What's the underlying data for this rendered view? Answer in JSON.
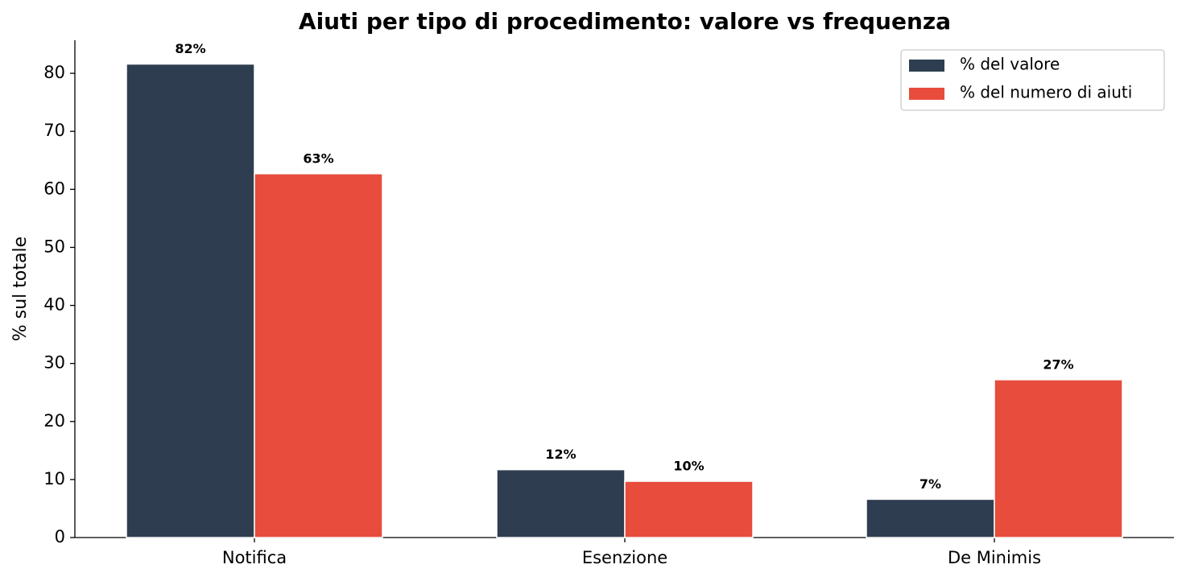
{
  "chart_data": {
    "type": "bar",
    "title": "Aiuti per tipo di procedimento: valore vs frequenza",
    "y_label": "% sul totale",
    "categories": [
      "Notifica",
      "Esenzione",
      "De Minimis"
    ],
    "series": [
      {
        "name": "% del valore",
        "color": "#2e3e50",
        "values": [
          81.6,
          11.7,
          6.6
        ],
        "value_labels": [
          "82%",
          "12%",
          "7%"
        ]
      },
      {
        "name": "% del numero di aiuti",
        "color": "#e74c3c",
        "values": [
          62.7,
          9.7,
          27.2
        ],
        "value_labels": [
          "63%",
          "10%",
          "27%"
        ]
      }
    ],
    "ylim": [
      0,
      85.7
    ],
    "yticks": [
      0,
      10,
      20,
      30,
      40,
      50,
      60,
      70,
      80
    ],
    "grid": false,
    "legend": "upper right"
  }
}
